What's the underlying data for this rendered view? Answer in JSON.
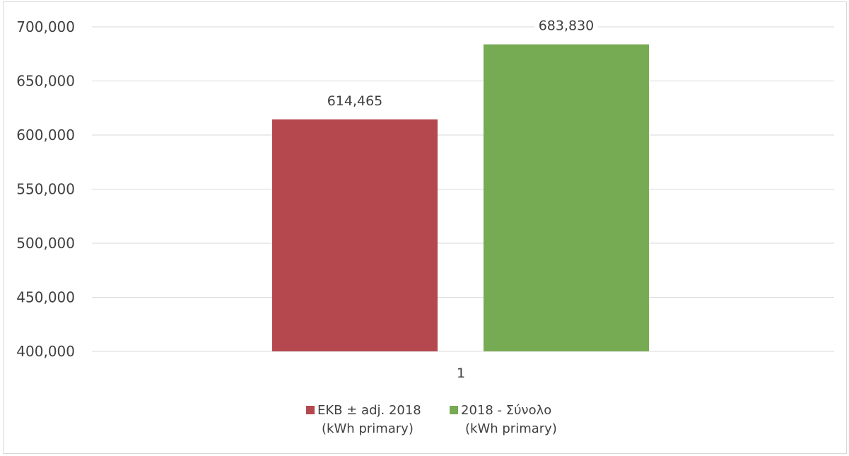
{
  "chart_data": {
    "type": "bar",
    "title": "",
    "xlabel": "",
    "ylabel": "",
    "categories": [
      "1"
    ],
    "ylim": [
      400000,
      700000
    ],
    "yticks": [
      400000,
      450000,
      500000,
      550000,
      600000,
      650000,
      700000
    ],
    "ytick_labels": [
      "400,000",
      "450,000",
      "500,000",
      "550,000",
      "600,000",
      "650,000",
      "700,000"
    ],
    "grid": true,
    "legend_position": "bottom",
    "series": [
      {
        "name": "ΕΚΒ ± adj. 2018 (kWh primary)",
        "legend_lines": [
          "ΕΚΒ ± adj. 2018",
          "(kWh primary)"
        ],
        "values": [
          614465
        ],
        "value_labels": [
          "614,465"
        ],
        "color": "#b5474e"
      },
      {
        "name": "2018 - Σύνολο (kWh primary)",
        "legend_lines": [
          "2018  - Σύνολο",
          "(kWh primary)"
        ],
        "values": [
          683830
        ],
        "value_labels": [
          "683,830"
        ],
        "color": "#77ab53"
      }
    ]
  }
}
